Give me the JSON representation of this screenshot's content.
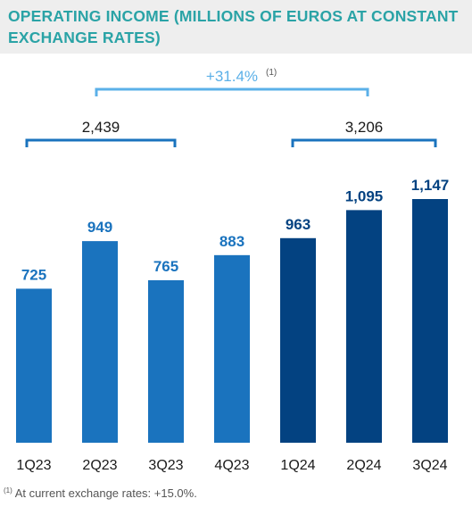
{
  "chart_data": {
    "type": "bar",
    "title": "OPERATING INCOME (MILLIONS OF EUROS AT CONSTANT EXCHANGE RATES)",
    "xlabel": "",
    "ylabel": "",
    "categories": [
      "1Q23",
      "2Q23",
      "3Q23",
      "4Q23",
      "1Q24",
      "2Q24",
      "3Q24"
    ],
    "values": [
      725,
      949,
      765,
      883,
      963,
      1095,
      1147
    ],
    "data_labels": [
      "725",
      "949",
      "765",
      "883",
      "963",
      "1,095",
      "1,147"
    ],
    "ylim": [
      0,
      1147
    ],
    "grid": false,
    "colors": {
      "2023": "#1a73be",
      "2024": "#034281",
      "bracket_2023_group": "#1a73be",
      "bracket_2024_group": "#1a73be",
      "bracket_growth": "#5bb0e8",
      "title": "#2aa3a6",
      "title_band": "#eeeeee"
    },
    "annotations": [
      {
        "label": "2,439",
        "span": [
          "1Q23",
          "3Q23"
        ]
      },
      {
        "label": "3,206",
        "span": [
          "1Q24",
          "3Q24"
        ]
      },
      {
        "label": "+31.4%",
        "footnote_ref": "(1)",
        "span": [
          "2Q23",
          "2Q24"
        ]
      }
    ]
  },
  "footnote": {
    "ref": "(1)",
    "text": "At current exchange rates: +15.0%."
  }
}
